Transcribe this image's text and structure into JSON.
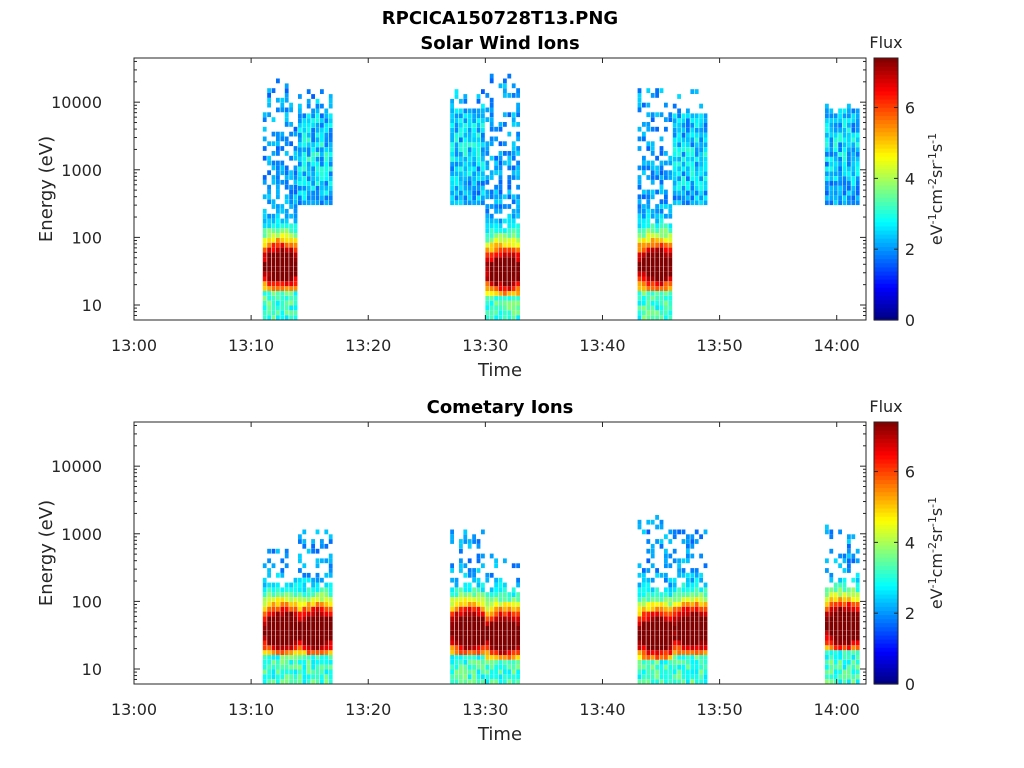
{
  "title": "RPCICA150728T13.PNG",
  "colors": {
    "plot_background": "#ffffff",
    "axis": "#262626",
    "colormap": "jet"
  },
  "chart_data": [
    {
      "type": "heatmap",
      "title": "Solar Wind Ions",
      "xlabel": "Time",
      "ylabel": "Energy (eV)",
      "x_ticks": [
        "13:00",
        "13:10",
        "13:20",
        "13:30",
        "13:40",
        "13:50",
        "14:00"
      ],
      "x_range_minutes": [
        0,
        62.5
      ],
      "y_scale": "log",
      "y_ticks": [
        10,
        100,
        1000,
        10000
      ],
      "y_tick_labels": [
        "10",
        "100",
        "1000",
        "10000"
      ],
      "y_range": [
        6,
        45000
      ],
      "grid": false,
      "colorbar": {
        "title": "Flux",
        "label": "eV-1cm-2sr-1s-1",
        "ticks": [
          0,
          2,
          4,
          6
        ],
        "tick_labels": [
          "0",
          "2",
          "4",
          "6"
        ],
        "range": [
          0,
          7.4
        ]
      },
      "bursts": [
        {
          "start": "13:11",
          "end": "13:14",
          "energy_min": 6,
          "energy_max": 20000,
          "peak_energy": 35,
          "peak_flux": 7.0
        },
        {
          "start": "13:14",
          "end": "13:17",
          "energy_min": 300,
          "energy_max": 15000,
          "peak_energy": 1500,
          "peak_flux": 2.6
        },
        {
          "start": "13:27",
          "end": "13:30",
          "energy_min": 300,
          "energy_max": 15000,
          "peak_energy": 2000,
          "peak_flux": 2.5
        },
        {
          "start": "13:30",
          "end": "13:33",
          "energy_min": 6,
          "energy_max": 25000,
          "peak_energy": 30,
          "peak_flux": 6.6
        },
        {
          "start": "13:43",
          "end": "13:46",
          "energy_min": 6,
          "energy_max": 15000,
          "peak_energy": 35,
          "peak_flux": 6.6
        },
        {
          "start": "13:46",
          "end": "13:49",
          "energy_min": 300,
          "energy_max": 15000,
          "peak_energy": 1500,
          "peak_flux": 2.5
        },
        {
          "start": "13:59",
          "end": "14:02",
          "energy_min": 300,
          "energy_max": 10000,
          "peak_energy": 2000,
          "peak_flux": 2.4
        }
      ]
    },
    {
      "type": "heatmap",
      "title": "Cometary Ions",
      "xlabel": "Time",
      "ylabel": "Energy (eV)",
      "x_ticks": [
        "13:00",
        "13:10",
        "13:20",
        "13:30",
        "13:40",
        "13:50",
        "14:00"
      ],
      "x_range_minutes": [
        0,
        62.5
      ],
      "y_scale": "log",
      "y_ticks": [
        10,
        100,
        1000,
        10000
      ],
      "y_tick_labels": [
        "10",
        "100",
        "1000",
        "10000"
      ],
      "y_range": [
        6,
        45000
      ],
      "grid": false,
      "colorbar": {
        "title": "Flux",
        "label": "eV-1cm-2sr-1s-1",
        "ticks": [
          0,
          2,
          4,
          6
        ],
        "tick_labels": [
          "0",
          "2",
          "4",
          "6"
        ],
        "range": [
          0,
          7.4
        ]
      },
      "bursts": [
        {
          "start": "13:11",
          "end": "13:14",
          "energy_min": 6,
          "energy_max": 600,
          "peak_energy": 35,
          "peak_flux": 7.2
        },
        {
          "start": "13:14",
          "end": "13:17",
          "energy_min": 6,
          "energy_max": 1100,
          "peak_energy": 35,
          "peak_flux": 7.2
        },
        {
          "start": "13:27",
          "end": "13:30",
          "energy_min": 6,
          "energy_max": 1100,
          "peak_energy": 35,
          "peak_flux": 7.3
        },
        {
          "start": "13:30",
          "end": "13:33",
          "energy_min": 6,
          "energy_max": 500,
          "peak_energy": 30,
          "peak_flux": 7.2
        },
        {
          "start": "13:43",
          "end": "13:46",
          "energy_min": 6,
          "energy_max": 1800,
          "peak_energy": 30,
          "peak_flux": 7.2
        },
        {
          "start": "13:46",
          "end": "13:49",
          "energy_min": 6,
          "energy_max": 1000,
          "peak_energy": 35,
          "peak_flux": 7.3
        },
        {
          "start": "13:59",
          "end": "14:02",
          "energy_min": 6,
          "energy_max": 1200,
          "peak_energy": 40,
          "peak_flux": 7.3
        }
      ]
    }
  ]
}
